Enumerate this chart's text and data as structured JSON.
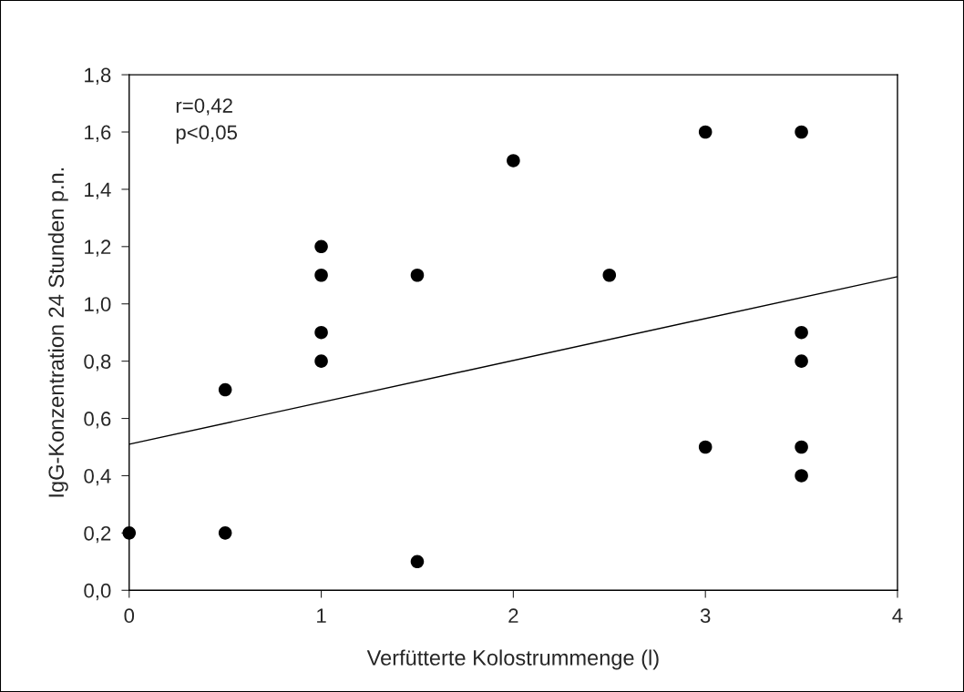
{
  "chart_data": {
    "type": "scatter",
    "xlabel": "Verfütterte Kolostrummenge (l)",
    "ylabel": "IgG-Konzentration 24 Stunden p.n.",
    "annotations": [
      "r=0,42",
      "p<0,05"
    ],
    "series": [
      {
        "color": "#000000",
        "marker": "circle",
        "x": [
          0,
          0.5,
          0.5,
          1,
          1,
          1,
          1,
          1.5,
          1.5,
          2,
          2.5,
          3,
          3,
          3.5,
          3.5,
          3.5,
          3.5,
          3.5
        ],
        "values": [
          0.2,
          0.7,
          0.2,
          1.2,
          1.1,
          0.9,
          0.8,
          1.1,
          0.1,
          1.5,
          1.1,
          1.6,
          0.5,
          1.6,
          0.9,
          0.8,
          0.5,
          0.4
        ]
      },
      {
        "type": "line",
        "color": "#000000",
        "line_style": "solid",
        "x": [
          0,
          4
        ],
        "values": [
          0.51,
          1.095
        ]
      }
    ],
    "xlim": [
      0,
      4
    ],
    "xticks": [
      0,
      1,
      2,
      3,
      4
    ],
    "ylim": [
      0,
      1.8
    ],
    "yticks": [
      {
        "value": 0,
        "label": "0,0"
      },
      {
        "value": 0.2,
        "label": "0,2"
      },
      {
        "value": 0.4,
        "label": "0,4"
      },
      {
        "value": 0.6,
        "label": "0,6"
      },
      {
        "value": 0.8,
        "label": "0,8"
      },
      {
        "value": 1.0,
        "label": "1,0"
      },
      {
        "value": 1.2,
        "label": "1,2"
      },
      {
        "value": 1.4,
        "label": "1,4"
      },
      {
        "value": 1.6,
        "label": "1,6"
      },
      {
        "value": 1.8,
        "label": "1,8"
      }
    ],
    "grid": false,
    "legend": false
  }
}
